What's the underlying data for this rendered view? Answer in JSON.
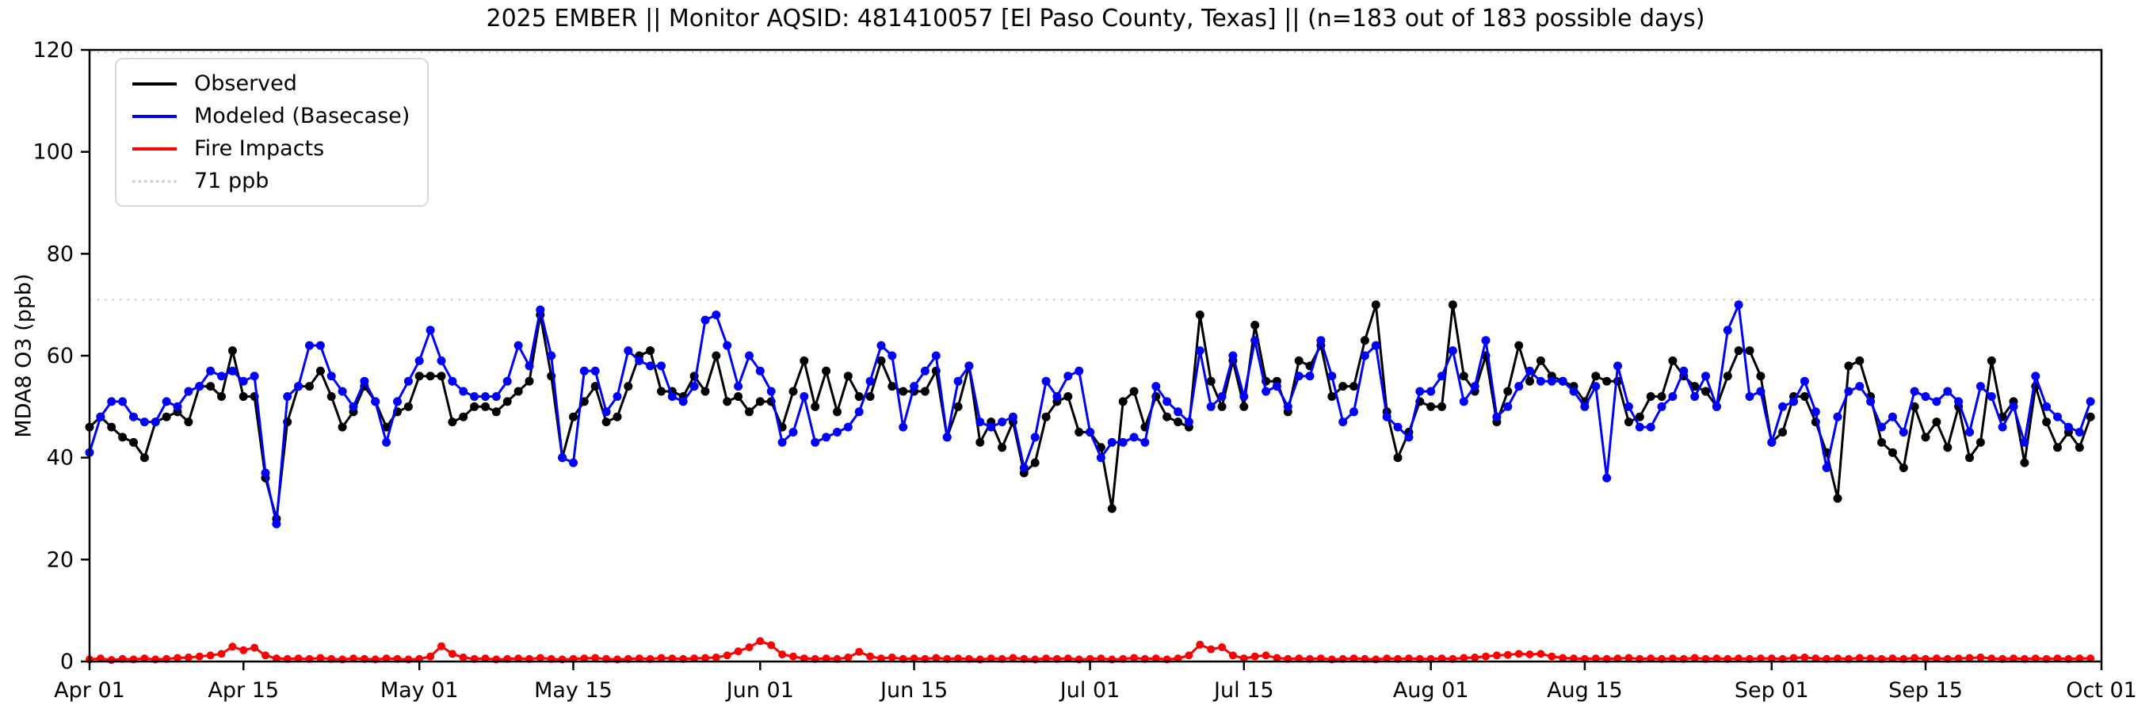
{
  "title": "2025 EMBER || Monitor AQSID: 481410057 [El Paso County, Texas] || (n=183 out of 183 possible days)",
  "y_axis": {
    "label": "MDA8 O3 (ppb)",
    "ticks": [
      0,
      20,
      40,
      60,
      80,
      100,
      120
    ],
    "range": [
      0,
      120
    ]
  },
  "x_axis": {
    "ticks": [
      {
        "label": "Apr 01",
        "day": 0
      },
      {
        "label": "Apr 15",
        "day": 14
      },
      {
        "label": "May 01",
        "day": 30
      },
      {
        "label": "May 15",
        "day": 44
      },
      {
        "label": "Jun 01",
        "day": 61
      },
      {
        "label": "Jun 15",
        "day": 75
      },
      {
        "label": "Jul 01",
        "day": 91
      },
      {
        "label": "Jul 15",
        "day": 105
      },
      {
        "label": "Aug 01",
        "day": 122
      },
      {
        "label": "Aug 15",
        "day": 136
      },
      {
        "label": "Sep 01",
        "day": 153
      },
      {
        "label": "Sep 15",
        "day": 167
      },
      {
        "label": "Oct 01",
        "day": 183
      }
    ]
  },
  "legend": {
    "items": [
      {
        "label": "Observed",
        "color": "#000000",
        "style": "solid"
      },
      {
        "label": "Modeled (Basecase)",
        "color": "#0000FF",
        "style": "solid"
      },
      {
        "label": "Fire Impacts",
        "color": "#FF0000",
        "style": "solid"
      },
      {
        "label": "71 ppb",
        "color": "#D3D3D3",
        "style": "dotted"
      }
    ]
  },
  "colors": {
    "observed": "#000000",
    "modeled": "#0000FF",
    "fire": "#FF0000",
    "threshold": "#D3D3D3",
    "background": "#FFFFFF"
  },
  "chart_data": {
    "type": "line",
    "title": "2025 EMBER || Monitor AQSID: 481410057 [El Paso County, Texas] || (n=183 out of 183 possible days)",
    "xlabel": "",
    "ylabel": "MDA8 O3 (ppb)",
    "ylim": [
      0,
      120
    ],
    "grid": false,
    "legend_position": "upper left",
    "threshold_ppb": 71,
    "n_days": 183,
    "x_unit": "daily values, day 0 = Apr 01 through day 182 = Sep 30",
    "series": [
      {
        "name": "Observed",
        "color": "#000000",
        "marker": "circle",
        "values": [
          46,
          48,
          46,
          44,
          43,
          40,
          47,
          48,
          49,
          47,
          54,
          54,
          52,
          61,
          52,
          52,
          36,
          28,
          47,
          54,
          54,
          57,
          52,
          46,
          49,
          54,
          51,
          46,
          49,
          50,
          56,
          56,
          56,
          47,
          48,
          50,
          50,
          49,
          51,
          53,
          55,
          68,
          56,
          40,
          48,
          51,
          54,
          47,
          48,
          54,
          60,
          61,
          53,
          53,
          52,
          56,
          53,
          60,
          51,
          52,
          49,
          51,
          51,
          46,
          53,
          59,
          50,
          57,
          49,
          56,
          52,
          52,
          59,
          54,
          53,
          53,
          53,
          57,
          44,
          50,
          58,
          43,
          47,
          42,
          47,
          37,
          39,
          48,
          51,
          52,
          45,
          45,
          42,
          30,
          51,
          53,
          46,
          52,
          48,
          47,
          46,
          68,
          55,
          50,
          59,
          50,
          66,
          55,
          55,
          49,
          59,
          58,
          62,
          52,
          54,
          54,
          63,
          70,
          49,
          40,
          45,
          51,
          50,
          50,
          70,
          56,
          53,
          60,
          47,
          53,
          62,
          55,
          59,
          56,
          55,
          54,
          51,
          56,
          55,
          55,
          47,
          48,
          52,
          52,
          59,
          56,
          54,
          53,
          50,
          56,
          61,
          61,
          56,
          43,
          45,
          52,
          52,
          47,
          41,
          32,
          58,
          59,
          52,
          43,
          41,
          38,
          50,
          44,
          47,
          42,
          50,
          40,
          43,
          59,
          48,
          51,
          39,
          54,
          47,
          42,
          45,
          42,
          48
        ]
      },
      {
        "name": "Modeled (Basecase)",
        "color": "#0000FF",
        "marker": "circle",
        "values": [
          41,
          48,
          51,
          51,
          48,
          47,
          47,
          51,
          50,
          53,
          54,
          57,
          56,
          57,
          55,
          56,
          37,
          27,
          52,
          54,
          62,
          62,
          56,
          53,
          50,
          55,
          51,
          43,
          51,
          55,
          59,
          65,
          59,
          55,
          53,
          52,
          52,
          52,
          55,
          62,
          58,
          69,
          60,
          40,
          39,
          57,
          57,
          49,
          52,
          61,
          59,
          58,
          58,
          52,
          51,
          54,
          67,
          68,
          62,
          54,
          60,
          57,
          53,
          43,
          45,
          52,
          43,
          44,
          45,
          46,
          49,
          55,
          62,
          60,
          46,
          54,
          57,
          60,
          44,
          55,
          58,
          47,
          46,
          47,
          48,
          38,
          44,
          55,
          52,
          56,
          57,
          45,
          40,
          43,
          43,
          44,
          43,
          54,
          51,
          49,
          47,
          61,
          50,
          52,
          60,
          52,
          63,
          53,
          54,
          50,
          56,
          56,
          63,
          56,
          47,
          49,
          60,
          62,
          48,
          46,
          44,
          53,
          53,
          56,
          61,
          51,
          54,
          63,
          48,
          50,
          54,
          57,
          55,
          55,
          55,
          53,
          50,
          54,
          36,
          58,
          50,
          46,
          46,
          50,
          52,
          57,
          52,
          56,
          50,
          65,
          70,
          52,
          53,
          43,
          50,
          51,
          55,
          49,
          38,
          48,
          53,
          54,
          51,
          46,
          48,
          45,
          53,
          52,
          51,
          53,
          51,
          45,
          54,
          52,
          46,
          50,
          43,
          56,
          50,
          48,
          46,
          45,
          51
        ]
      },
      {
        "name": "Fire Impacts",
        "color": "#FF0000",
        "marker": "circle",
        "values": [
          0.4,
          0.6,
          0.3,
          0.5,
          0.4,
          0.6,
          0.4,
          0.5,
          0.7,
          0.8,
          1.0,
          1.2,
          1.5,
          2.9,
          2.2,
          2.7,
          1.2,
          0.6,
          0.5,
          0.6,
          0.5,
          0.7,
          0.5,
          0.4,
          0.6,
          0.5,
          0.4,
          0.6,
          0.5,
          0.4,
          0.5,
          1.0,
          3.0,
          1.5,
          0.8,
          0.5,
          0.6,
          0.4,
          0.5,
          0.6,
          0.5,
          0.7,
          0.5,
          0.4,
          0.5,
          0.6,
          0.7,
          0.5,
          0.4,
          0.5,
          0.6,
          0.5,
          0.7,
          0.6,
          0.5,
          0.6,
          0.7,
          0.8,
          1.2,
          2.0,
          2.8,
          4.0,
          3.2,
          1.4,
          1.0,
          0.6,
          0.5,
          0.6,
          0.5,
          0.8,
          1.9,
          1.0,
          0.6,
          0.8,
          0.5,
          0.6,
          0.5,
          0.7,
          0.5,
          0.6,
          0.5,
          0.4,
          0.6,
          0.5,
          0.7,
          0.5,
          0.4,
          0.6,
          0.5,
          0.6,
          0.4,
          0.5,
          0.6,
          0.4,
          0.5,
          0.7,
          0.5,
          0.6,
          0.4,
          0.6,
          1.2,
          3.3,
          2.4,
          2.8,
          1.2,
          0.6,
          1.0,
          1.2,
          0.7,
          0.5,
          0.6,
          0.5,
          0.6,
          0.4,
          0.5,
          0.6,
          0.5,
          0.4,
          0.6,
          0.5,
          0.6,
          0.5,
          0.5,
          0.6,
          0.5,
          0.7,
          0.8,
          1.0,
          1.2,
          1.3,
          1.5,
          1.4,
          1.5,
          1.0,
          0.7,
          0.6,
          0.5,
          0.6,
          0.5,
          0.6,
          0.7,
          0.5,
          0.6,
          0.5,
          0.6,
          0.5,
          0.7,
          0.5,
          0.6,
          0.5,
          0.6,
          0.5,
          0.6,
          0.6,
          0.5,
          0.7,
          0.8,
          0.6,
          0.5,
          0.6,
          0.5,
          0.7,
          0.6,
          0.5,
          0.6,
          0.5,
          0.7,
          0.5,
          0.6,
          0.5,
          0.6,
          0.7,
          0.8,
          0.6,
          0.5,
          0.6,
          0.5,
          0.6,
          0.5,
          0.6,
          0.5,
          0.6,
          0.6
        ]
      }
    ]
  }
}
